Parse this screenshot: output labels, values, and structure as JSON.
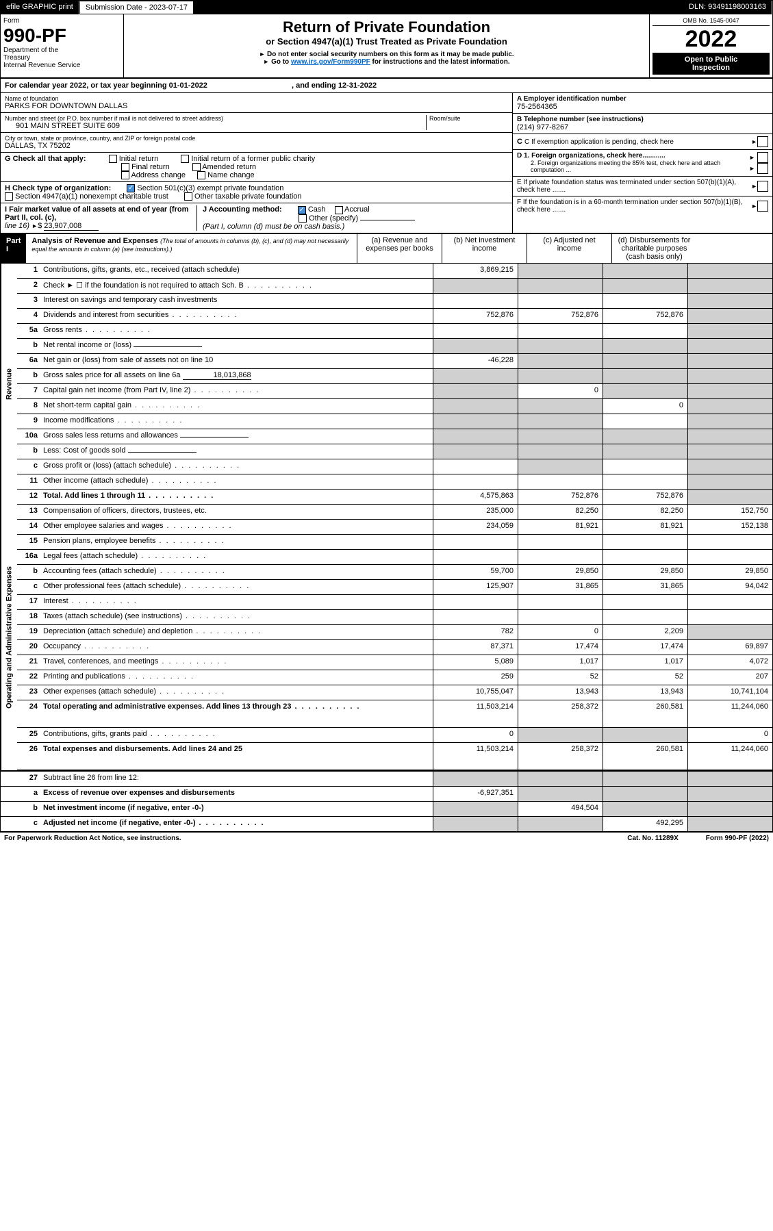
{
  "header": {
    "efile": "efile GRAPHIC print",
    "subm_lbl": "Submission Date - 2023-07-17",
    "dln": "DLN: 93491198003163",
    "omb": "OMB No. 1545-0047",
    "form": "Form",
    "form_no": "990-PF",
    "dept1": "Department of the",
    "dept2": "Treasury",
    "dept3": "Internal Revenue Service",
    "title": "Return of Private Foundation",
    "subtitle": "or Section 4947(a)(1) Trust Treated as Private Foundation",
    "note1": "Do not enter social security numbers on this form as it may be made public.",
    "note2": "Go to ",
    "note2_link": "www.irs.gov/Form990PF",
    "note2_end": " for instructions and the latest information.",
    "year": "2022",
    "open1": "Open to Public",
    "open2": "Inspection"
  },
  "cal": {
    "text1": "For calendar year 2022, or tax year beginning 01-01-2022",
    "text2": ", and ending 12-31-2022"
  },
  "ident": {
    "name_lbl": "Name of foundation",
    "name": "PARKS FOR DOWNTOWN DALLAS",
    "addr_lbl": "Number and street (or P.O. box number if mail is not delivered to street address)",
    "addr": "901 MAIN STREET SUITE 609",
    "room_lbl": "Room/suite",
    "city_lbl": "City or town, state or province, country, and ZIP or foreign postal code",
    "city": "DALLAS, TX  75202",
    "a_lbl": "A Employer identification number",
    "a_val": "75-2564365",
    "b_lbl": "B Telephone number (see instructions)",
    "b_val": "(214) 977-8267",
    "c_lbl": "C If exemption application is pending, check here",
    "d1": "D 1. Foreign organizations, check here............",
    "d2": "2. Foreign organizations meeting the 85% test, check here and attach computation ...",
    "e_lbl": "E  If private foundation status was terminated under section 507(b)(1)(A), check here .......",
    "f_lbl": "F  If the foundation is in a 60-month termination under section 507(b)(1)(B), check here .......",
    "g_lbl": "G Check all that apply:",
    "g_opts": [
      "Initial return",
      "Initial return of a former public charity",
      "Final return",
      "Amended return",
      "Address change",
      "Name change"
    ],
    "h_lbl": "H Check type of organization:",
    "h1": "Section 501(c)(3) exempt private foundation",
    "h2": "Section 4947(a)(1) nonexempt charitable trust",
    "h3": "Other taxable private foundation",
    "i_lbl": "I Fair market value of all assets at end of year (from Part II, col. (c),",
    "i_line": "line 16)",
    "i_val": "23,907,008",
    "j_lbl": "J Accounting method:",
    "j_cash": "Cash",
    "j_accr": "Accrual",
    "j_other": "Other (specify)",
    "j_note": "(Part I, column (d) must be on cash basis.)"
  },
  "part1": {
    "lbl": "Part I",
    "title": "Analysis of Revenue and Expenses",
    "note": "(The total of amounts in columns (b), (c), and (d) may not necessarily equal the amounts in column (a) (see instructions).)",
    "col_a": "(a)    Revenue and expenses per books",
    "col_b": "(b)   Net investment income",
    "col_c": "(c)  Adjusted net income",
    "col_d": "(d)  Disbursements for charitable purposes (cash basis only)"
  },
  "sidebars": {
    "rev": "Revenue",
    "exp": "Operating and Administrative Expenses"
  },
  "lines": [
    {
      "n": "1",
      "d": "Contributions, gifts, grants, etc., received (attach schedule)",
      "a": "3,869,215",
      "b": "",
      "c": "",
      "de": "",
      "bs": true,
      "cs": true,
      "ds": true
    },
    {
      "n": "2",
      "d": "Check ► ☐ if the foundation is not required to attach Sch. B",
      "a": "",
      "b": "",
      "c": "",
      "de": "",
      "as": true,
      "bs": true,
      "cs": true,
      "ds": true,
      "dots": true
    },
    {
      "n": "3",
      "d": "Interest on savings and temporary cash investments",
      "a": "",
      "b": "",
      "c": "",
      "de": "",
      "ds": true
    },
    {
      "n": "4",
      "d": "Dividends and interest from securities",
      "a": "752,876",
      "b": "752,876",
      "c": "752,876",
      "de": "",
      "ds": true,
      "dots": true
    },
    {
      "n": "5a",
      "d": "Gross rents",
      "a": "",
      "b": "",
      "c": "",
      "de": "",
      "ds": true,
      "dots": true
    },
    {
      "n": "b",
      "d": "Net rental income or (loss)",
      "a": "",
      "b": "",
      "c": "",
      "de": "",
      "as": true,
      "bs": true,
      "cs": true,
      "ds": true,
      "ul": true
    },
    {
      "n": "6a",
      "d": "Net gain or (loss) from sale of assets not on line 10",
      "a": "-46,228",
      "b": "",
      "c": "",
      "de": "",
      "bs": true,
      "cs": true,
      "ds": true
    },
    {
      "n": "b",
      "d": "Gross sales price for all assets on line 6a",
      "a": "",
      "b": "",
      "c": "",
      "de": "",
      "as": true,
      "bs": true,
      "cs": true,
      "ds": true,
      "ul": true,
      "ulval": "18,013,868"
    },
    {
      "n": "7",
      "d": "Capital gain net income (from Part IV, line 2)",
      "a": "",
      "b": "0",
      "c": "",
      "de": "",
      "as": true,
      "cs": true,
      "ds": true,
      "dots": true
    },
    {
      "n": "8",
      "d": "Net short-term capital gain",
      "a": "",
      "b": "",
      "c": "0",
      "de": "",
      "as": true,
      "bs": true,
      "ds": true,
      "dots": true
    },
    {
      "n": "9",
      "d": "Income modifications",
      "a": "",
      "b": "",
      "c": "",
      "de": "",
      "as": true,
      "bs": true,
      "ds": true,
      "dots": true
    },
    {
      "n": "10a",
      "d": "Gross sales less returns and allowances",
      "a": "",
      "b": "",
      "c": "",
      "de": "",
      "as": true,
      "bs": true,
      "cs": true,
      "ds": true,
      "ul": true
    },
    {
      "n": "b",
      "d": "Less: Cost of goods sold",
      "a": "",
      "b": "",
      "c": "",
      "de": "",
      "as": true,
      "bs": true,
      "cs": true,
      "ds": true,
      "ul": true,
      "dots": true
    },
    {
      "n": "c",
      "d": "Gross profit or (loss) (attach schedule)",
      "a": "",
      "b": "",
      "c": "",
      "de": "",
      "bs": true,
      "ds": true,
      "dots": true
    },
    {
      "n": "11",
      "d": "Other income (attach schedule)",
      "a": "",
      "b": "",
      "c": "",
      "de": "",
      "ds": true,
      "dots": true
    },
    {
      "n": "12",
      "d": "Total. Add lines 1 through 11",
      "a": "4,575,863",
      "b": "752,876",
      "c": "752,876",
      "de": "",
      "ds": true,
      "bold": true,
      "dots": true
    }
  ],
  "exp_lines": [
    {
      "n": "13",
      "d": "Compensation of officers, directors, trustees, etc.",
      "a": "235,000",
      "b": "82,250",
      "c": "82,250",
      "de": "152,750"
    },
    {
      "n": "14",
      "d": "Other employee salaries and wages",
      "a": "234,059",
      "b": "81,921",
      "c": "81,921",
      "de": "152,138",
      "dots": true
    },
    {
      "n": "15",
      "d": "Pension plans, employee benefits",
      "a": "",
      "b": "",
      "c": "",
      "de": "",
      "dots": true
    },
    {
      "n": "16a",
      "d": "Legal fees (attach schedule)",
      "a": "",
      "b": "",
      "c": "",
      "de": "",
      "dots": true
    },
    {
      "n": "b",
      "d": "Accounting fees (attach schedule)",
      "a": "59,700",
      "b": "29,850",
      "c": "29,850",
      "de": "29,850",
      "dots": true
    },
    {
      "n": "c",
      "d": "Other professional fees (attach schedule)",
      "a": "125,907",
      "b": "31,865",
      "c": "31,865",
      "de": "94,042",
      "dots": true
    },
    {
      "n": "17",
      "d": "Interest",
      "a": "",
      "b": "",
      "c": "",
      "de": "",
      "dots": true
    },
    {
      "n": "18",
      "d": "Taxes (attach schedule) (see instructions)",
      "a": "",
      "b": "",
      "c": "",
      "de": "",
      "dots": true
    },
    {
      "n": "19",
      "d": "Depreciation (attach schedule) and depletion",
      "a": "782",
      "b": "0",
      "c": "2,209",
      "de": "",
      "ds": true,
      "dots": true
    },
    {
      "n": "20",
      "d": "Occupancy",
      "a": "87,371",
      "b": "17,474",
      "c": "17,474",
      "de": "69,897",
      "dots": true
    },
    {
      "n": "21",
      "d": "Travel, conferences, and meetings",
      "a": "5,089",
      "b": "1,017",
      "c": "1,017",
      "de": "4,072",
      "dots": true
    },
    {
      "n": "22",
      "d": "Printing and publications",
      "a": "259",
      "b": "52",
      "c": "52",
      "de": "207",
      "dots": true
    },
    {
      "n": "23",
      "d": "Other expenses (attach schedule)",
      "a": "10,755,047",
      "b": "13,943",
      "c": "13,943",
      "de": "10,741,104",
      "dots": true
    },
    {
      "n": "24",
      "d": "Total operating and administrative expenses. Add lines 13 through 23",
      "a": "11,503,214",
      "b": "258,372",
      "c": "260,581",
      "de": "11,244,060",
      "bold": true,
      "dots": true,
      "tall": true
    },
    {
      "n": "25",
      "d": "Contributions, gifts, grants paid",
      "a": "0",
      "b": "",
      "c": "",
      "de": "0",
      "bs": true,
      "cs": true,
      "dots": true
    },
    {
      "n": "26",
      "d": "Total expenses and disbursements. Add lines 24 and 25",
      "a": "11,503,214",
      "b": "258,372",
      "c": "260,581",
      "de": "11,244,060",
      "bold": true,
      "tall": true
    }
  ],
  "bottom_lines": [
    {
      "n": "27",
      "d": "Subtract line 26 from line 12:",
      "a": "",
      "b": "",
      "c": "",
      "de": "",
      "as": true,
      "bs": true,
      "cs": true,
      "ds": true
    },
    {
      "n": "a",
      "d": "Excess of revenue over expenses and disbursements",
      "a": "-6,927,351",
      "b": "",
      "c": "",
      "de": "",
      "bs": true,
      "cs": true,
      "ds": true,
      "bold": true
    },
    {
      "n": "b",
      "d": "Net investment income (if negative, enter -0-)",
      "a": "",
      "b": "494,504",
      "c": "",
      "de": "",
      "as": true,
      "cs": true,
      "ds": true,
      "bold": true
    },
    {
      "n": "c",
      "d": "Adjusted net income (if negative, enter -0-)",
      "a": "",
      "b": "",
      "c": "492,295",
      "de": "",
      "as": true,
      "bs": true,
      "ds": true,
      "bold": true,
      "dots": true
    }
  ],
  "footer": {
    "left": "For Paperwork Reduction Act Notice, see instructions.",
    "mid": "Cat. No. 11289X",
    "right": "Form 990-PF (2022)"
  }
}
